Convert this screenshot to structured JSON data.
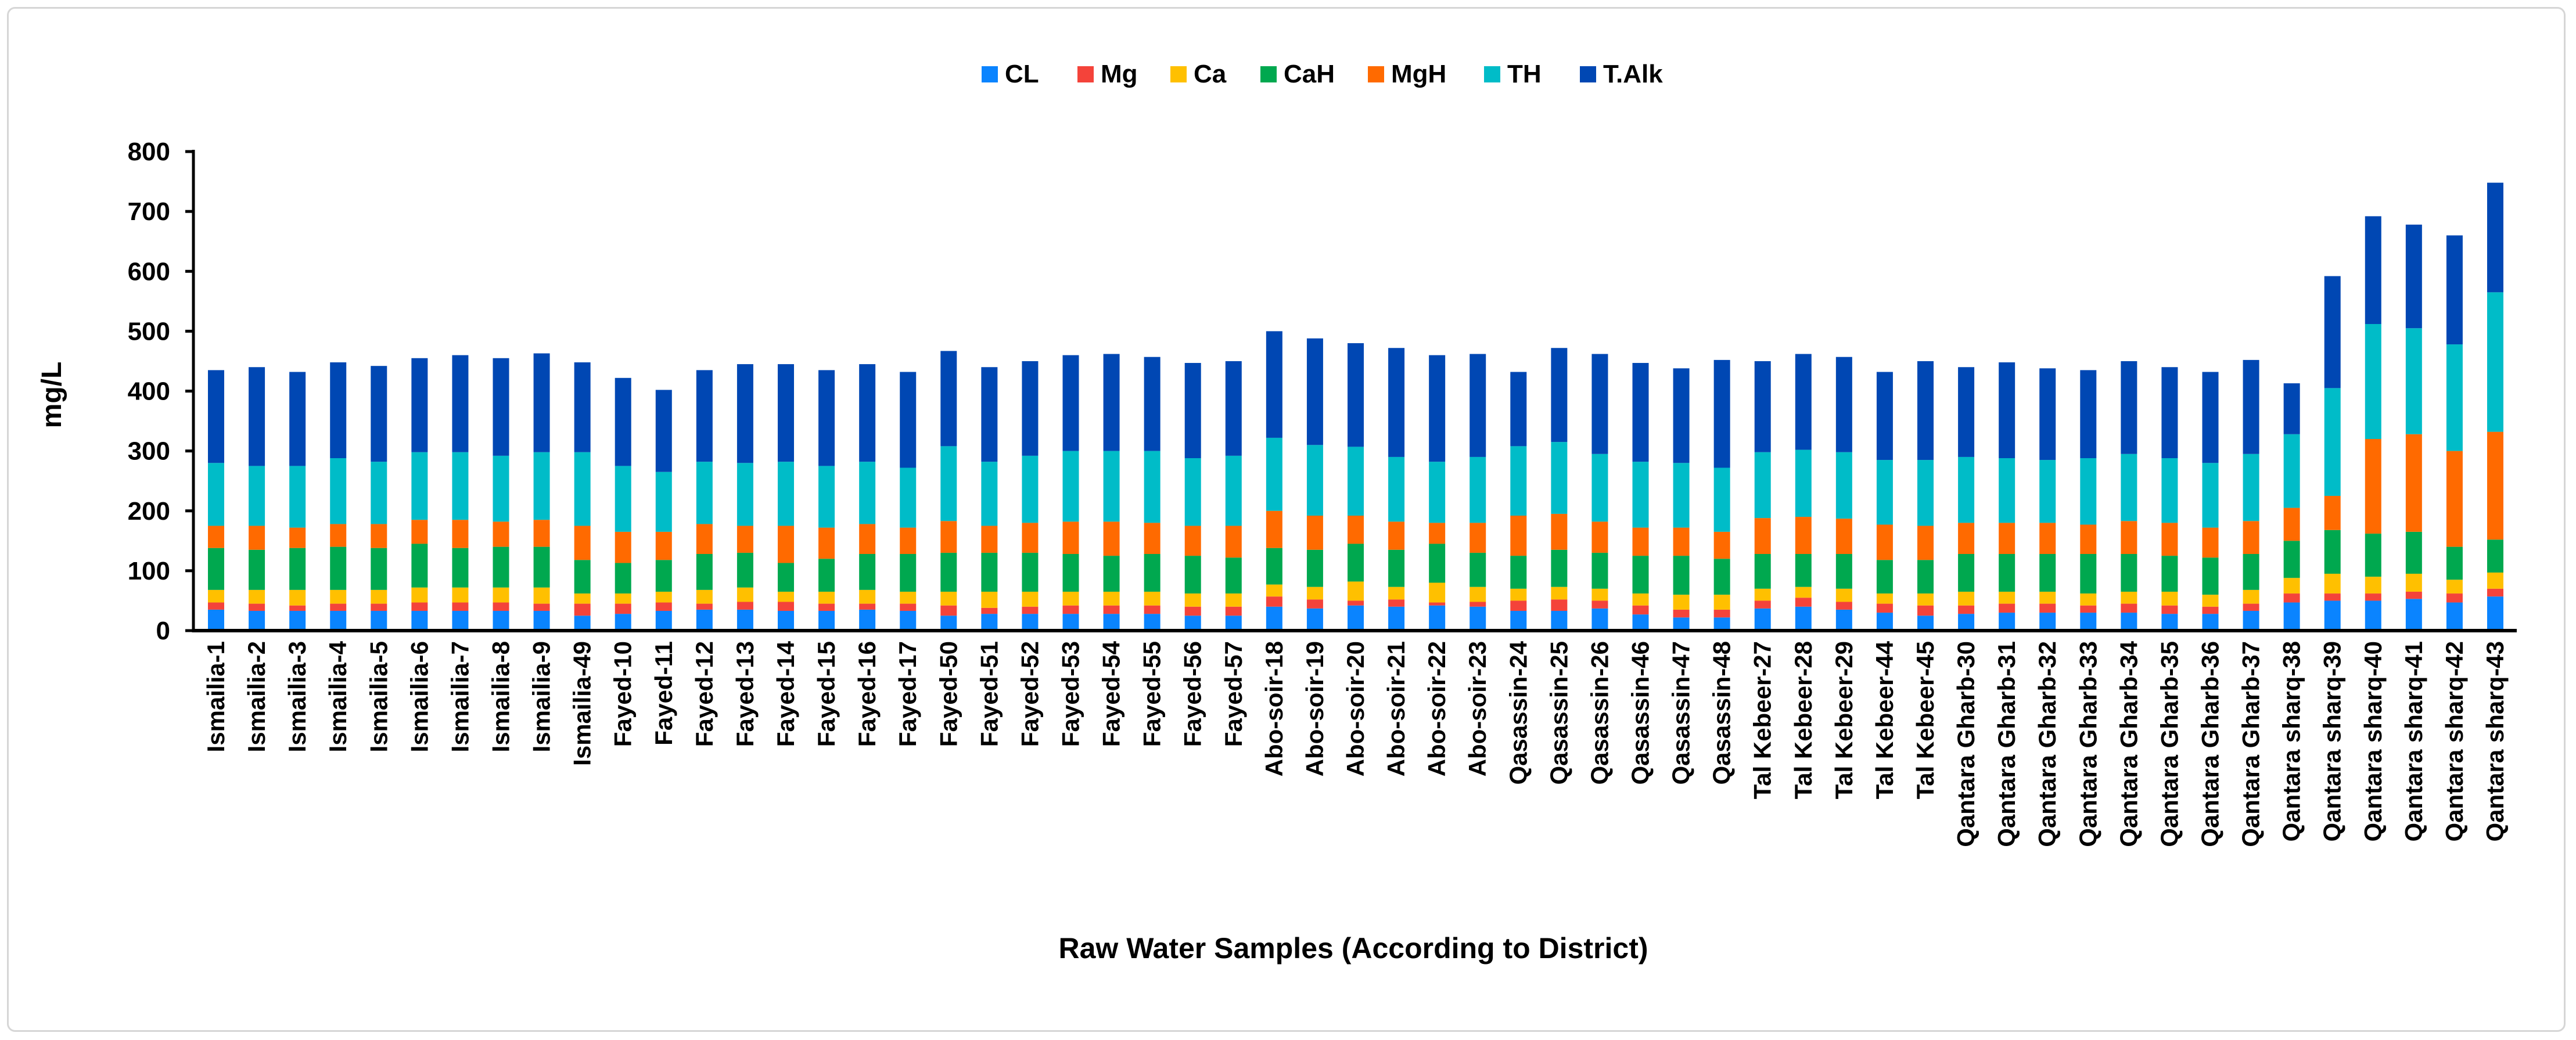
{
  "chart_data": {
    "type": "bar",
    "stacked": true,
    "title": "",
    "xlabel": "Raw Water Samples (According to District)",
    "ylabel": "mg/L",
    "ylim": [
      0,
      800
    ],
    "yticks": [
      "0",
      "100",
      "200",
      "300",
      "400",
      "500",
      "600",
      "700",
      "800"
    ],
    "grid": false,
    "legend_position": "top-center",
    "categories": [
      "Ismailia-1",
      "Ismailia-2",
      "Ismailia-3",
      "Ismailia-4",
      "Ismailia-5",
      "Ismailia-6",
      "Ismailia-7",
      "Ismailia-8",
      "Ismailia-9",
      "Ismailia-49",
      "Fayed-10",
      "Fayed-11",
      "Fayed-12",
      "Fayed-13",
      "Fayed-14",
      "Fayed-15",
      "Fayed-16",
      "Fayed-17",
      "Fayed-50",
      "Fayed-51",
      "Fayed-52",
      "Fayed-53",
      "Fayed-54",
      "Fayed-55",
      "Fayed-56",
      "Fayed-57",
      "Abo-soir-18",
      "Abo-soir-19",
      "Abo-soir-20",
      "Abo-soir-21",
      "Abo-soir-22",
      "Abo-soir-23",
      "Qasassin-24",
      "Qasassin-25",
      "Qasassin-26",
      "Qasassin-46",
      "Qasassin-47",
      "Qasassin-48",
      "Tal Kebeer-27",
      "Tal Kebeer-28",
      "Tal Kebeer-29",
      "Tal Kebeer-44",
      "Tal Kebeer-45",
      "Qantara Gharb-30",
      "Qantara Gharb-31",
      "Qantara Gharb-32",
      "Qantara Gharb-33",
      "Qantara Gharb-34",
      "Qantara Gharb-35",
      "Qantara Gharb-36",
      "Qantara Gharb-37",
      "Qantara sharq-38",
      "Qantara sharq-39",
      "Qantara sharq-40",
      "Qantara sharq-41",
      "Qantara sharq-42",
      "Qantara sharq-43"
    ],
    "series": [
      {
        "name": "CL",
        "color": "#0A84FF",
        "values": [
          35,
          33,
          33,
          33,
          33,
          33,
          33,
          33,
          33,
          25,
          28,
          33,
          35,
          35,
          33,
          33,
          35,
          33,
          25,
          28,
          28,
          28,
          28,
          28,
          25,
          25,
          40,
          37,
          42,
          40,
          42,
          40,
          33,
          33,
          37,
          27,
          22,
          22,
          37,
          40,
          35,
          30,
          25,
          28,
          30,
          30,
          30,
          30,
          28,
          28,
          33,
          47,
          50,
          50,
          53,
          47,
          57
        ]
      },
      {
        "name": "Mg",
        "color": "#F4433A",
        "values": [
          12,
          12,
          9,
          12,
          12,
          14,
          14,
          14,
          12,
          20,
          17,
          14,
          10,
          13,
          15,
          12,
          10,
          12,
          17,
          10,
          12,
          14,
          14,
          14,
          15,
          15,
          17,
          15,
          8,
          12,
          5,
          8,
          17,
          19,
          13,
          15,
          13,
          13,
          13,
          15,
          13,
          15,
          17,
          14,
          15,
          15,
          12,
          15,
          14,
          12,
          12,
          15,
          12,
          12,
          12,
          15,
          13
        ]
      },
      {
        "name": "Ca",
        "color": "#FFC000",
        "values": [
          21,
          23,
          26,
          23,
          23,
          25,
          25,
          25,
          27,
          17,
          17,
          18,
          23,
          24,
          17,
          20,
          23,
          20,
          23,
          27,
          25,
          23,
          23,
          23,
          22,
          22,
          20,
          21,
          32,
          21,
          33,
          25,
          20,
          21,
          20,
          20,
          25,
          25,
          20,
          18,
          22,
          17,
          20,
          23,
          20,
          20,
          20,
          20,
          23,
          20,
          23,
          26,
          33,
          28,
          30,
          23,
          27
        ]
      },
      {
        "name": "CaH",
        "color": "#00A84F",
        "values": [
          70,
          67,
          70,
          72,
          70,
          73,
          66,
          68,
          68,
          56,
          51,
          53,
          60,
          58,
          48,
          55,
          60,
          63,
          65,
          65,
          65,
          63,
          60,
          63,
          63,
          60,
          61,
          62,
          63,
          62,
          65,
          57,
          55,
          62,
          60,
          63,
          65,
          60,
          58,
          55,
          58,
          56,
          56,
          63,
          63,
          63,
          66,
          63,
          60,
          62,
          60,
          62,
          73,
          72,
          70,
          55,
          55
        ]
      },
      {
        "name": "MgH",
        "color": "#FF6A00",
        "values": [
          37,
          40,
          34,
          38,
          40,
          40,
          47,
          42,
          45,
          57,
          52,
          47,
          50,
          45,
          62,
          52,
          50,
          44,
          53,
          45,
          50,
          54,
          57,
          52,
          50,
          53,
          62,
          57,
          47,
          47,
          35,
          50,
          67,
          60,
          52,
          47,
          47,
          45,
          60,
          62,
          59,
          59,
          57,
          52,
          52,
          52,
          49,
          55,
          55,
          50,
          55,
          55,
          57,
          158,
          163,
          160,
          180
        ]
      },
      {
        "name": "TH",
        "color": "#00BCC8",
        "values": [
          105,
          100,
          103,
          110,
          104,
          113,
          113,
          110,
          113,
          123,
          110,
          100,
          104,
          105,
          107,
          103,
          104,
          100,
          125,
          107,
          112,
          118,
          118,
          120,
          113,
          117,
          122,
          118,
          115,
          108,
          102,
          110,
          116,
          120,
          113,
          110,
          108,
          107,
          110,
          112,
          111,
          108,
          110,
          110,
          108,
          105,
          111,
          112,
          108,
          108,
          112,
          123,
          180,
          192,
          177,
          178,
          233
        ]
      },
      {
        "name": "T.Alk",
        "color": "#0047B3",
        "values": [
          155,
          165,
          157,
          160,
          160,
          157,
          162,
          163,
          165,
          150,
          147,
          137,
          153,
          165,
          163,
          160,
          163,
          160,
          159,
          158,
          158,
          160,
          162,
          157,
          159,
          158,
          178,
          178,
          173,
          182,
          178,
          172,
          124,
          157,
          167,
          165,
          158,
          180,
          152,
          160,
          159,
          147,
          165,
          150,
          160,
          153,
          147,
          155,
          152,
          152,
          157,
          85,
          187,
          180,
          173,
          182,
          183
        ]
      }
    ]
  }
}
